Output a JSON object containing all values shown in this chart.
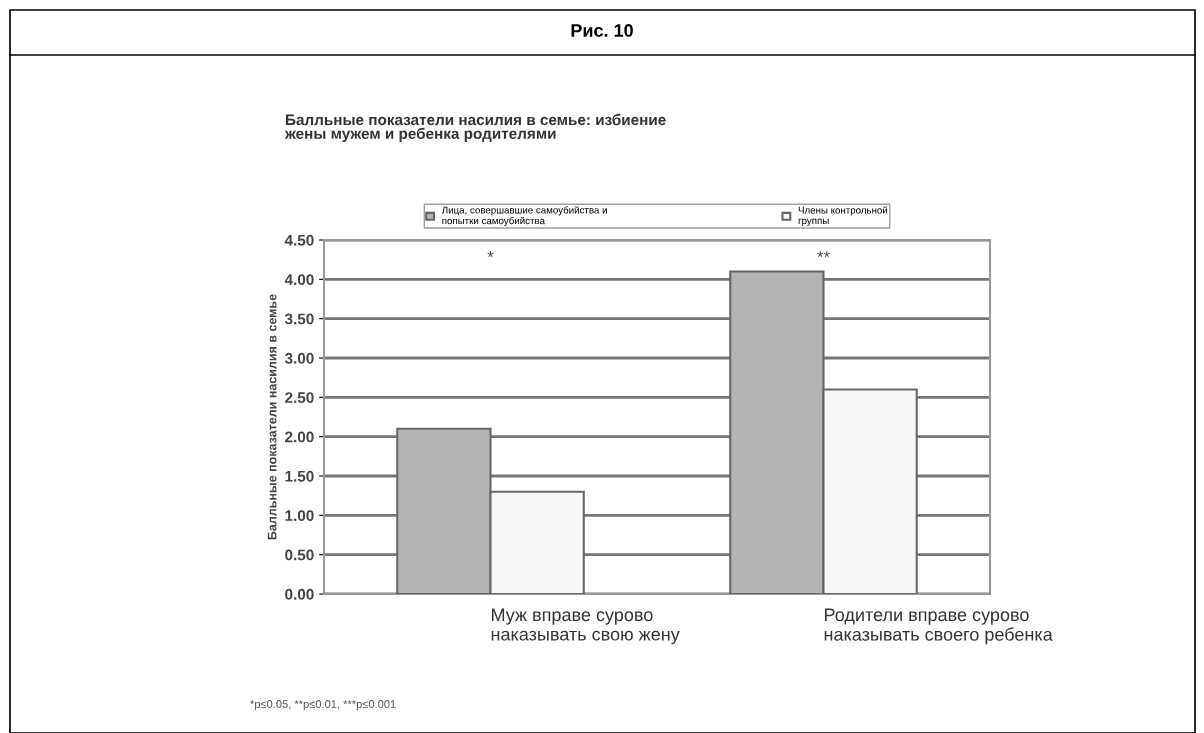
{
  "chart_data": {
    "type": "bar",
    "title": "Рис. 10",
    "subtitle": "Балльные показатели насилия в семье: избиение\nжены мужем и ребенка родителями",
    "ylabel": "Балльные показатели насилия в семье",
    "categories": [
      "Муж вправе сурово\nнаказывать свою жену",
      "Родители вправе сурово\nнаказывать своего ребенка"
    ],
    "series": [
      {
        "name": "Лица, совершавшие самоубийства и\nпопытки самоубийства",
        "color": "#b4b4b4",
        "values": [
          2.1,
          4.1
        ]
      },
      {
        "name": "Члены контрольной\nгруппы",
        "color": "#f8f8f8",
        "values": [
          1.3,
          2.6
        ]
      }
    ],
    "ylim": [
      0,
      4.5
    ],
    "yticks": [
      {
        "value": 0,
        "label": "0.00"
      },
      {
        "value": 0.5,
        "label": "0.50"
      },
      {
        "value": 1,
        "label": "1.00"
      },
      {
        "value": 1.5,
        "label": "1.50"
      },
      {
        "value": 2,
        "label": "2.00"
      },
      {
        "value": 2.5,
        "label": "2.50"
      },
      {
        "value": 3,
        "label": "3.00"
      },
      {
        "value": 3.5,
        "label": "3.50"
      },
      {
        "value": 4,
        "label": "4.00"
      },
      {
        "value": 4.5,
        "label": "4.50"
      }
    ],
    "grid": "y",
    "legend": "top",
    "annotations": [
      "*",
      "**",
      "*p≤0.05, **p≤0.01, ***p≤0.001"
    ]
  }
}
